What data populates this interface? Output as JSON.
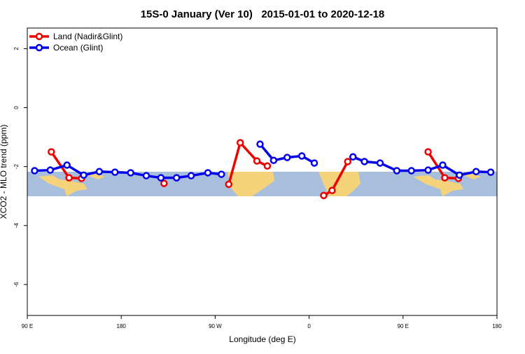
{
  "chart_data": {
    "type": "line",
    "title": "15S-0 January (Ver 10)   2015-01-01 to 2020-12-18",
    "x_label": "Longitude (deg E)",
    "y_label": "XCO2 - MLO trend (ppm)",
    "xlim": [
      90,
      540
    ],
    "xticks": [
      {
        "value": 90,
        "label": "90 E"
      },
      {
        "value": 180,
        "label": "180"
      },
      {
        "value": 270,
        "label": "90 W"
      },
      {
        "value": 360,
        "label": "0"
      },
      {
        "value": 450,
        "label": "90 E"
      },
      {
        "value": 540,
        "label": "180"
      }
    ],
    "ylim": [
      -7.05,
      2.7
    ],
    "yticks": [
      2,
      0,
      -2,
      -4,
      -6
    ],
    "legend": "top-left",
    "series": [
      {
        "name": "Land (Nadir&Glint)",
        "color": "#ee0000",
        "x": [
          113,
          130,
          142,
          null,
          221,
          null,
          283,
          294,
          310,
          320,
          null,
          374,
          382,
          397,
          null,
          474,
          490,
          503
        ],
        "values": [
          -1.5,
          -2.38,
          -2.4,
          null,
          -2.57,
          null,
          -2.6,
          -1.19,
          -1.81,
          -1.98,
          null,
          -2.98,
          -2.81,
          -1.83,
          null,
          -1.5,
          -2.38,
          -2.4
        ]
      },
      {
        "name": "Ocean (Glint)",
        "color": "#0000ee",
        "x": [
          97,
          112,
          128,
          144,
          159,
          174,
          189,
          204,
          218,
          233,
          247,
          263,
          276,
          null,
          313,
          326,
          339,
          353,
          365,
          null,
          402,
          413,
          428,
          444,
          458,
          474,
          488,
          504,
          520,
          534
        ],
        "values": [
          -2.14,
          -2.12,
          -1.95,
          -2.29,
          -2.17,
          -2.19,
          -2.21,
          -2.31,
          -2.38,
          -2.38,
          -2.31,
          -2.21,
          -2.26,
          null,
          -1.24,
          -1.79,
          -1.69,
          -1.64,
          -1.88,
          null,
          -1.67,
          -1.83,
          -1.88,
          -2.14,
          -2.14,
          -2.12,
          -1.95,
          -2.29,
          -2.17,
          -2.19
        ]
      }
    ]
  }
}
